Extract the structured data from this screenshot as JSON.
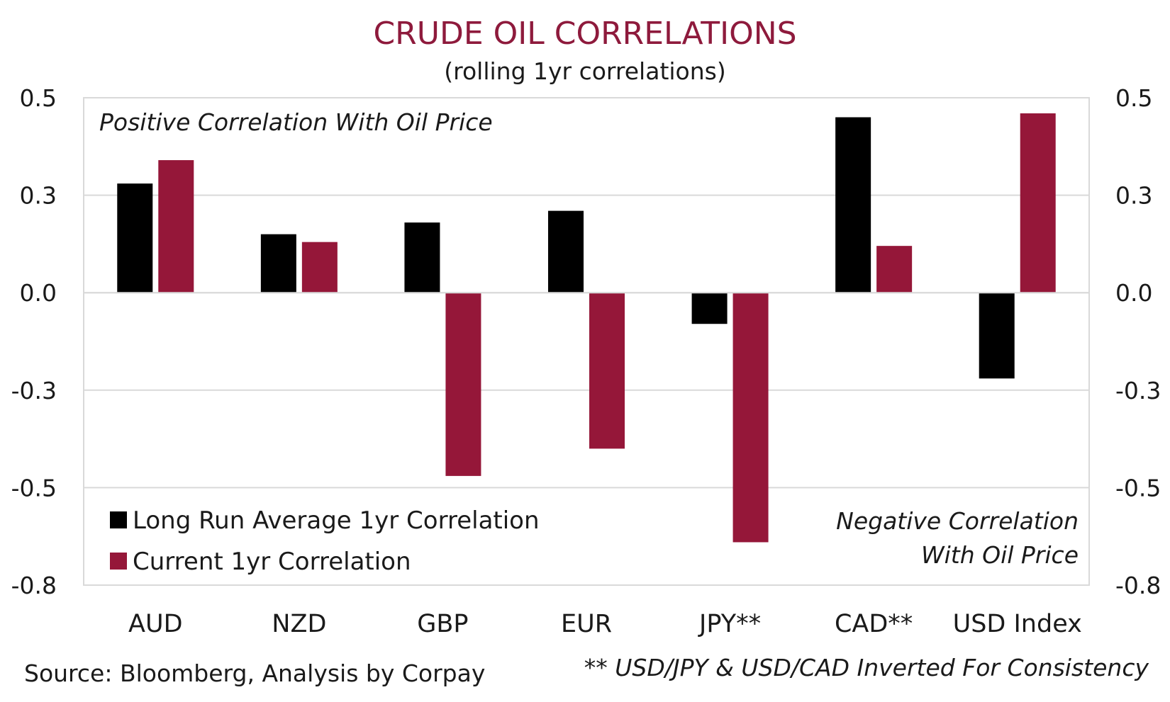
{
  "chart_data": {
    "type": "bar",
    "title": "CRUDE OIL CORRELATIONS",
    "subtitle": "(rolling 1yr correlations)",
    "categories": [
      "AUD",
      "NZD",
      "GBP",
      "EUR",
      "JPY**",
      "CAD**",
      "USD Index"
    ],
    "series": [
      {
        "name": "Long Run Average 1yr Correlation",
        "color": "#000000",
        "values": [
          0.28,
          0.15,
          0.18,
          0.21,
          -0.08,
          0.45,
          -0.22
        ]
      },
      {
        "name": "Current 1yr Correlation",
        "color": "#951739",
        "values": [
          0.34,
          0.13,
          -0.47,
          -0.4,
          -0.64,
          0.12,
          0.46
        ]
      }
    ],
    "ylim": [
      -0.75,
      0.5
    ],
    "yticks": [
      0.5,
      0.25,
      0.0,
      -0.25,
      -0.5,
      -0.75
    ],
    "ytick_labels": [
      "0.5",
      "0.3",
      "0.0",
      "-0.3",
      "-0.5",
      "-0.8"
    ],
    "grid": true,
    "legend": "bottom-left",
    "annotations": {
      "positive": "Positive Correlation With Oil Price",
      "negative_line1": "Negative Correlation",
      "negative_line2": "With Oil Price"
    }
  },
  "source": "Source: Bloomberg, Analysis by Corpay",
  "footnote": "** USD/JPY & USD/CAD Inverted For Consistency"
}
